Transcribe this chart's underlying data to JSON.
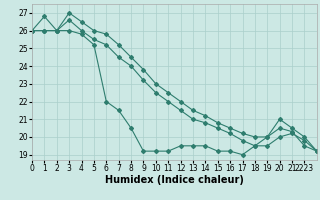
{
  "background_color": "#cce8e4",
  "grid_color": "#aacfcb",
  "line_color": "#2e7d6e",
  "series": [
    {
      "x": [
        0,
        1,
        2,
        3,
        4,
        5,
        6,
        7,
        8,
        9,
        10,
        11,
        12,
        13,
        14,
        15,
        16,
        17,
        18,
        19,
        20,
        21,
        22,
        23
      ],
      "y": [
        26,
        26.8,
        26,
        27,
        26.5,
        26,
        25.8,
        25.2,
        24.5,
        23.8,
        23.0,
        22.5,
        22.0,
        21.5,
        21.2,
        20.8,
        20.5,
        20.2,
        20.0,
        20.0,
        20.5,
        20.3,
        19.5,
        19.2
      ]
    },
    {
      "x": [
        0,
        1,
        2,
        3,
        4,
        5,
        6,
        7,
        8,
        9,
        10,
        11,
        12,
        13,
        14,
        15,
        16,
        17,
        18,
        19,
        20,
        21,
        22,
        23
      ],
      "y": [
        26,
        26,
        26,
        26.6,
        26,
        25.5,
        25.2,
        24.5,
        24.0,
        23.2,
        22.5,
        22.0,
        21.5,
        21.0,
        20.8,
        20.5,
        20.2,
        19.8,
        19.5,
        19.5,
        20.0,
        20.2,
        19.8,
        19.2
      ]
    },
    {
      "x": [
        0,
        1,
        2,
        3,
        4,
        5,
        6,
        7,
        8,
        9,
        10,
        11,
        12,
        13,
        14,
        15,
        16,
        17,
        18,
        19,
        20,
        21,
        22,
        23
      ],
      "y": [
        26,
        26,
        26,
        26,
        25.8,
        25.2,
        22.0,
        21.5,
        20.5,
        19.2,
        19.2,
        19.2,
        19.5,
        19.5,
        19.5,
        19.2,
        19.2,
        19.0,
        19.5,
        20.0,
        21.0,
        20.5,
        20.0,
        19.2
      ]
    }
  ],
  "xlim": [
    0,
    23
  ],
  "ylim": [
    18.7,
    27.5
  ],
  "yticks": [
    19,
    20,
    21,
    22,
    23,
    24,
    25,
    26,
    27
  ],
  "xtick_labels": [
    "0",
    "1",
    "2",
    "3",
    "4",
    "5",
    "6",
    "7",
    "8",
    "9",
    "10",
    "11",
    "12",
    "13",
    "14",
    "15",
    "16",
    "17",
    "18",
    "19",
    "20",
    "21",
    "2223"
  ],
  "xtick_positions": [
    0,
    1,
    2,
    3,
    4,
    5,
    6,
    7,
    8,
    9,
    10,
    11,
    12,
    13,
    14,
    15,
    16,
    17,
    18,
    19,
    20,
    21,
    22
  ],
  "xlabel": "Humidex (Indice chaleur)",
  "xlabel_fontsize": 7,
  "tick_fontsize": 5.5,
  "marker": "D",
  "marker_size": 2.0,
  "linewidth": 0.8
}
